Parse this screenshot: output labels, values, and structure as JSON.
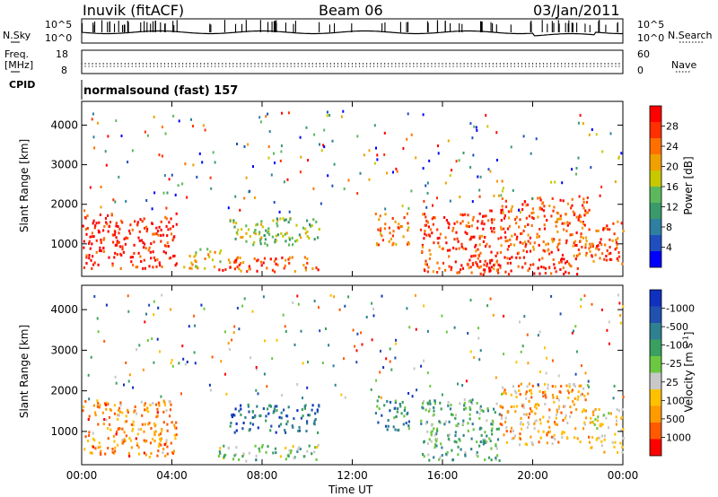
{
  "header": {
    "station": "Inuvik (fitACF)",
    "beam": "Beam 06",
    "date": "03/Jan/2011"
  },
  "panels": {
    "nsky": {
      "label": "N.Sky",
      "tick_top": "10^5",
      "tick_bottom": "10^0"
    },
    "nsearch": {
      "label": "N.Search",
      "tick_top": "10^5",
      "tick_bottom": "10^0"
    },
    "freq": {
      "label_line1": "Freq.",
      "label_line2": "[MHz]",
      "tick_top": "18",
      "tick_bottom": "8"
    },
    "nave": {
      "label": "Nave",
      "tick_top": "60",
      "tick_bottom": "0"
    },
    "cpid": {
      "label": "CPID",
      "value": "normalsound (fast) 157"
    }
  },
  "colors": {
    "power": [
      "#0000ff",
      "#1f4fbf",
      "#2f7fa0",
      "#3a9a6a",
      "#5cb85c",
      "#c8c800",
      "#f0a000",
      "#ff7000",
      "#ff3000",
      "#ff0000"
    ],
    "velocity": [
      "#ff0000",
      "#ff5a00",
      "#ff9a00",
      "#ffc000",
      "#c8c8c8",
      "#6cc840",
      "#3aa060",
      "#2f8090",
      "#2050b0",
      "#1030c0"
    ]
  },
  "chart_data": [
    {
      "type": "heatmap",
      "title": "",
      "xlabel": "Time UT",
      "ylabel": "Slant Range [km]",
      "ylim": [
        180,
        4600
      ],
      "x_ticks": [
        "00:00",
        "04:00",
        "08:00",
        "12:00",
        "16:00",
        "20:00",
        "00:00"
      ],
      "y_ticks": [
        1000,
        2000,
        3000,
        4000
      ],
      "colorbar": {
        "label": "Power [dB]",
        "ticks": [
          4,
          8,
          12,
          16,
          20,
          24,
          28
        ],
        "range": [
          0,
          30
        ]
      },
      "scatter_bands": [
        {
          "t0": 0.0,
          "t1": 4.2,
          "r0": 400,
          "r1": 1800,
          "level": 0.9
        },
        {
          "t0": 4.5,
          "t1": 6.2,
          "r0": 400,
          "r1": 900,
          "level": 0.6
        },
        {
          "t0": 6.5,
          "t1": 8.0,
          "r0": 1000,
          "r1": 1700,
          "level": 0.5
        },
        {
          "t0": 8.0,
          "t1": 10.5,
          "r0": 1000,
          "r1": 1700,
          "level": 0.45
        },
        {
          "t0": 6.0,
          "t1": 10.5,
          "r0": 300,
          "r1": 700,
          "level": 0.8
        },
        {
          "t0": 13.0,
          "t1": 14.5,
          "r0": 1000,
          "r1": 1800,
          "level": 0.7
        },
        {
          "t0": 15.0,
          "t1": 18.5,
          "r0": 300,
          "r1": 1800,
          "level": 0.85
        },
        {
          "t0": 18.5,
          "t1": 22.5,
          "r0": 700,
          "r1": 2200,
          "level": 0.8
        },
        {
          "t0": 17.0,
          "t1": 22.0,
          "r0": 250,
          "r1": 700,
          "level": 0.9
        },
        {
          "t0": 22.5,
          "t1": 24.0,
          "r0": 500,
          "r1": 1600,
          "level": 0.8
        }
      ]
    },
    {
      "type": "heatmap",
      "title": "",
      "xlabel": "Time UT",
      "ylabel": "Slant Range [km]",
      "ylim": [
        180,
        4600
      ],
      "x_ticks": [
        "00:00",
        "04:00",
        "08:00",
        "12:00",
        "16:00",
        "20:00",
        "00:00"
      ],
      "y_ticks": [
        1000,
        2000,
        3000,
        4000
      ],
      "colorbar": {
        "label": "Velocity [m s^-1]",
        "ticks": [
          1000,
          500,
          100,
          25,
          -25,
          -100,
          -500,
          -1000
        ]
      },
      "scatter_bands": [
        {
          "t0": 0.0,
          "t1": 4.2,
          "r0": 400,
          "r1": 1800,
          "level": 0.25
        },
        {
          "t0": 6.5,
          "t1": 10.5,
          "r0": 1000,
          "r1": 1700,
          "level": 0.8
        },
        {
          "t0": 6.0,
          "t1": 10.5,
          "r0": 300,
          "r1": 700,
          "level": 0.55
        },
        {
          "t0": 13.0,
          "t1": 14.5,
          "r0": 1000,
          "r1": 1800,
          "level": 0.7
        },
        {
          "t0": 15.0,
          "t1": 18.5,
          "r0": 300,
          "r1": 1800,
          "level": 0.6
        },
        {
          "t0": 18.5,
          "t1": 22.5,
          "r0": 700,
          "r1": 2200,
          "level": 0.3
        },
        {
          "t0": 22.5,
          "t1": 24.0,
          "r0": 500,
          "r1": 1600,
          "level": 0.4
        }
      ]
    }
  ]
}
